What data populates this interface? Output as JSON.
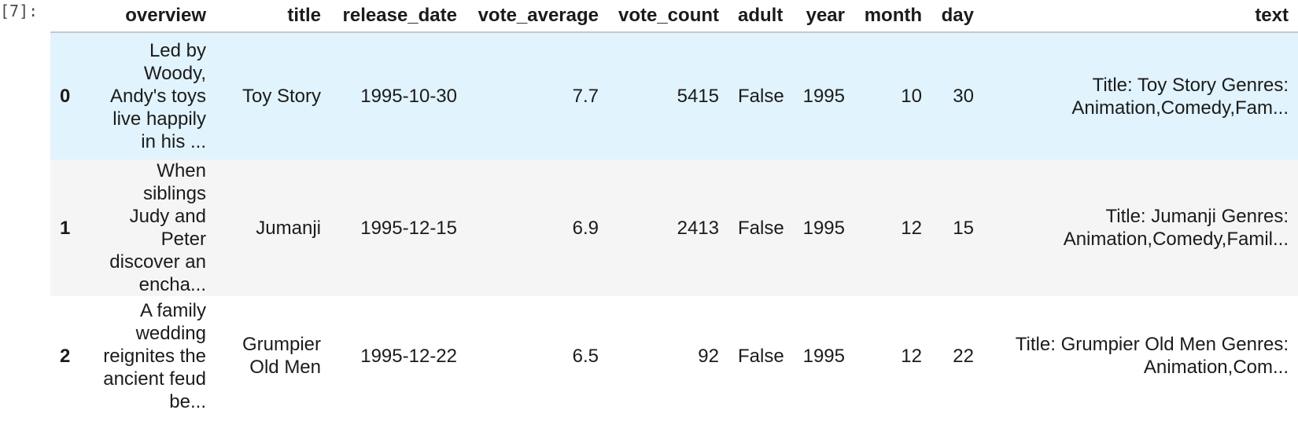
{
  "prompt": "[7]:",
  "columns": [
    "overview",
    "title",
    "release_date",
    "vote_average",
    "vote_count",
    "adult",
    "year",
    "month",
    "day",
    "text"
  ],
  "rows": [
    {
      "index": "0",
      "overview": "Led by Woody, Andy's toys live happily in his ...",
      "title": "Toy Story",
      "release_date": "1995-10-30",
      "vote_average": "7.7",
      "vote_count": "5415",
      "adult": "False",
      "year": "1995",
      "month": "10",
      "day": "30",
      "text": "Title: Toy Story Genres: Animation,Comedy,Fam..."
    },
    {
      "index": "1",
      "overview": "When siblings Judy and Peter discover an encha...",
      "title": "Jumanji",
      "release_date": "1995-12-15",
      "vote_average": "6.9",
      "vote_count": "2413",
      "adult": "False",
      "year": "1995",
      "month": "12",
      "day": "15",
      "text": "Title: Jumanji Genres: Animation,Comedy,Famil..."
    },
    {
      "index": "2",
      "overview": "A family wedding reignites the ancient feud be...",
      "title": "Grumpier Old Men",
      "release_date": "1995-12-22",
      "vote_average": "6.5",
      "vote_count": "92",
      "adult": "False",
      "year": "1995",
      "month": "12",
      "day": "22",
      "text": "Title: Grumpier Old Men Genres: Animation,Com..."
    }
  ]
}
